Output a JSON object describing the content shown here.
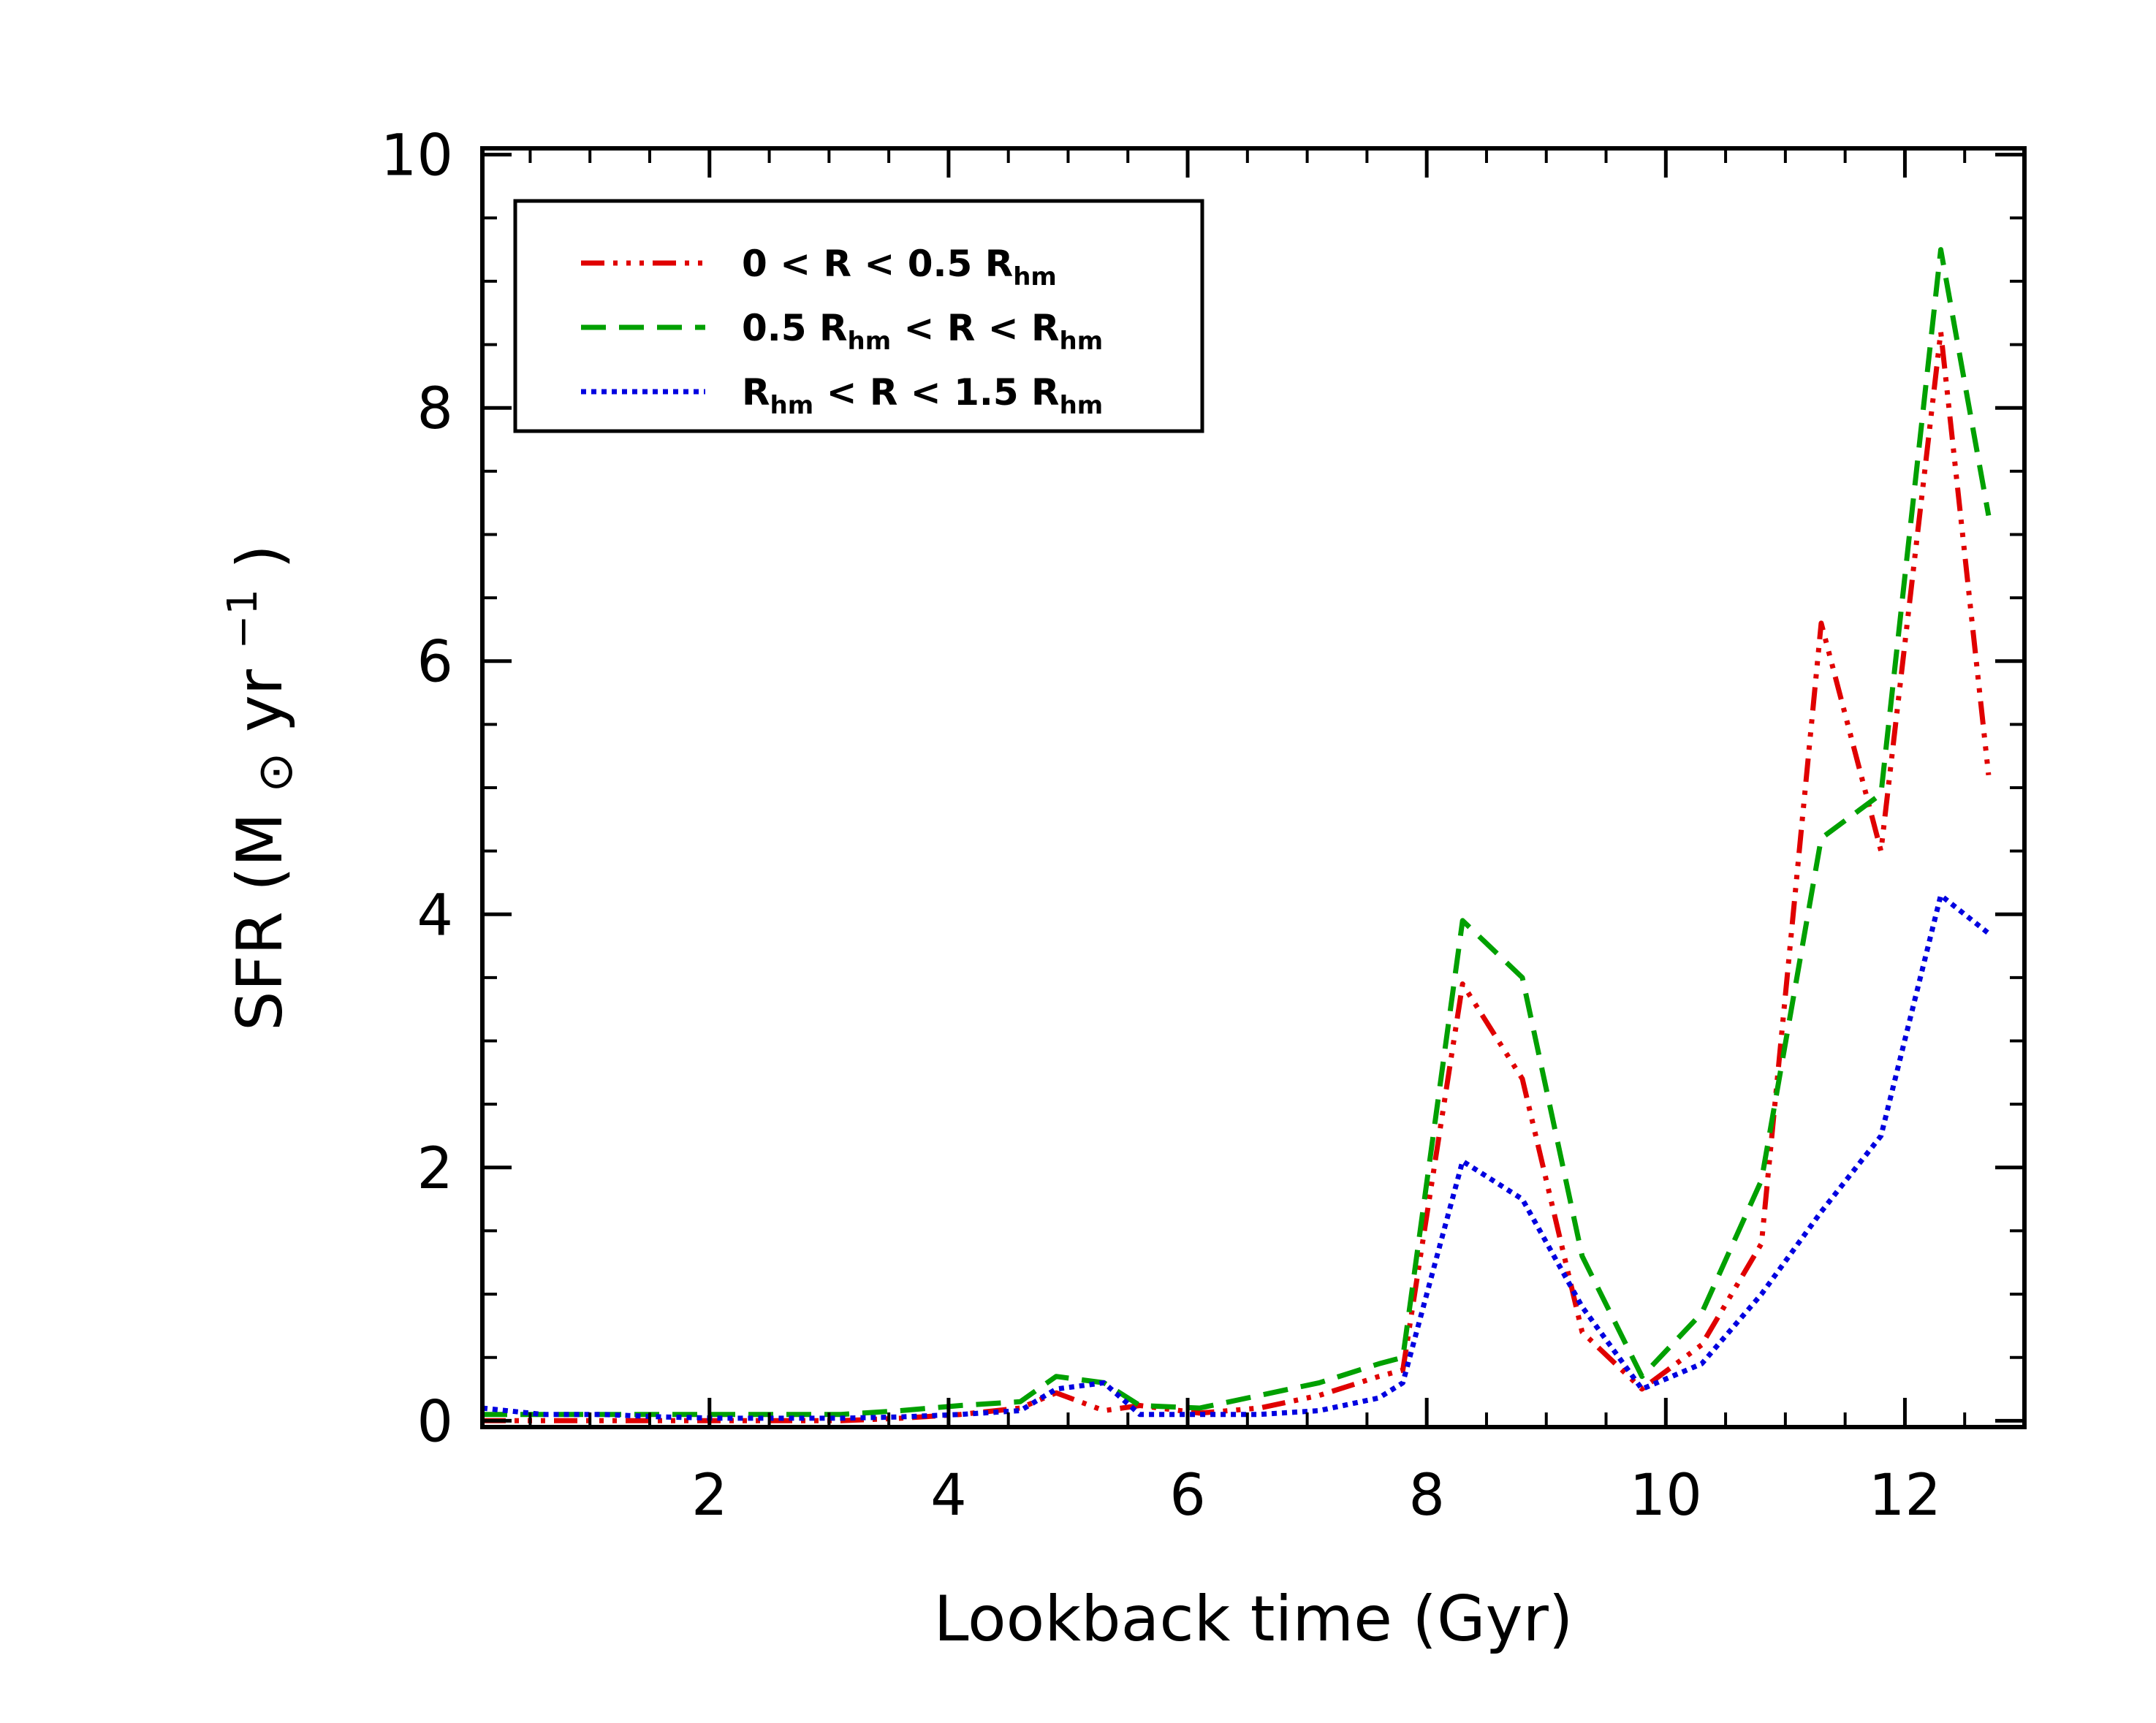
{
  "chart_data": {
    "type": "line",
    "title": "",
    "xlabel": "Lookback time (Gyr)",
    "ylabel_parts": {
      "main": "SFR (M",
      "sun": "⊙",
      "unit": " yr",
      "exp": "−1",
      "close": ")"
    },
    "xlim": [
      0.1,
      13.0
    ],
    "ylim": [
      -0.05,
      10.05
    ],
    "xticks": [
      2,
      4,
      6,
      8,
      10,
      12
    ],
    "yticks": [
      0,
      2,
      4,
      6,
      8,
      10
    ],
    "grid": false,
    "legend_position": "top-left",
    "series": [
      {
        "name_parts": [
          "0 < R < 0.5 R",
          "hm",
          ""
        ],
        "color": "#e00000",
        "dash": "32 12 6 12 6 12 6 12",
        "x": [
          0.1,
          0.6,
          1.1,
          1.6,
          2.1,
          2.6,
          3.1,
          3.6,
          4.1,
          4.6,
          4.9,
          5.3,
          5.6,
          6.1,
          6.6,
          7.1,
          7.6,
          7.8,
          8.3,
          8.8,
          9.3,
          9.8,
          10.3,
          10.8,
          11.3,
          11.8,
          12.3,
          12.7
        ],
        "y": [
          0.0,
          0.0,
          0.0,
          0.0,
          0.0,
          0.0,
          0.0,
          0.02,
          0.05,
          0.1,
          0.22,
          0.08,
          0.12,
          0.06,
          0.1,
          0.2,
          0.35,
          0.4,
          3.45,
          2.7,
          0.7,
          0.25,
          0.6,
          1.4,
          6.3,
          4.5,
          8.6,
          5.1
        ]
      },
      {
        "name_parts": [
          "0.5 R",
          "hm",
          " < R < R",
          "hm",
          ""
        ],
        "color": "#00a000",
        "dash": "34 18",
        "x": [
          0.1,
          0.6,
          1.1,
          1.6,
          2.1,
          2.6,
          3.1,
          3.6,
          4.1,
          4.6,
          4.9,
          5.3,
          5.6,
          6.1,
          6.6,
          7.1,
          7.6,
          7.8,
          8.3,
          8.8,
          9.3,
          9.8,
          10.3,
          10.8,
          11.3,
          11.8,
          12.3,
          12.7
        ],
        "y": [
          0.05,
          0.05,
          0.05,
          0.05,
          0.05,
          0.05,
          0.05,
          0.08,
          0.12,
          0.15,
          0.35,
          0.3,
          0.12,
          0.1,
          0.2,
          0.3,
          0.45,
          0.5,
          3.95,
          3.5,
          1.3,
          0.35,
          0.85,
          1.9,
          4.6,
          4.95,
          9.25,
          7.15
        ]
      },
      {
        "name_parts": [
          "R",
          "hm",
          " < R < 1.5 R",
          "hm",
          ""
        ],
        "color": "#0000e0",
        "dash": "7 7",
        "x": [
          0.1,
          0.6,
          1.1,
          1.6,
          2.1,
          2.6,
          3.1,
          3.6,
          4.1,
          4.6,
          4.9,
          5.3,
          5.6,
          6.1,
          6.6,
          7.1,
          7.6,
          7.8,
          8.3,
          8.8,
          9.3,
          9.8,
          10.3,
          10.8,
          11.3,
          11.8,
          12.3,
          12.7
        ],
        "y": [
          0.1,
          0.05,
          0.05,
          0.03,
          0.02,
          0.02,
          0.02,
          0.03,
          0.05,
          0.08,
          0.25,
          0.3,
          0.05,
          0.05,
          0.05,
          0.08,
          0.18,
          0.3,
          2.05,
          1.75,
          0.9,
          0.25,
          0.45,
          1.0,
          1.65,
          2.25,
          4.15,
          3.85
        ]
      }
    ]
  }
}
